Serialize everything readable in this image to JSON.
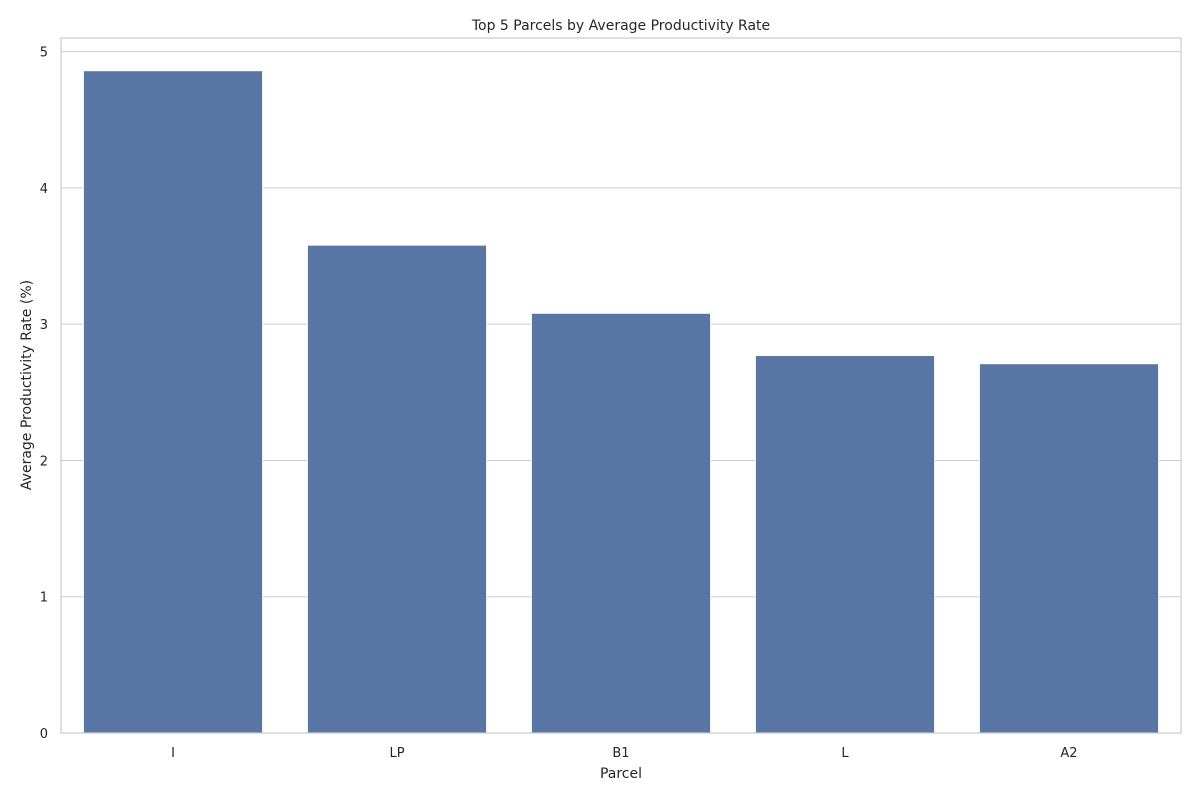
{
  "chart_data": {
    "type": "bar",
    "title": "Top 5 Parcels by Average Productivity Rate",
    "xlabel": "Parcel",
    "ylabel": "Average Productivity Rate (%)",
    "categories": [
      "I",
      "LP",
      "B1",
      "L",
      "A2"
    ],
    "values": [
      4.86,
      3.58,
      3.08,
      2.77,
      2.71
    ],
    "ylim": [
      0,
      5.1
    ],
    "yticks": [
      "0",
      "1",
      "2",
      "3",
      "4",
      "5"
    ],
    "grid": true,
    "bar_color": "#5875a4"
  }
}
